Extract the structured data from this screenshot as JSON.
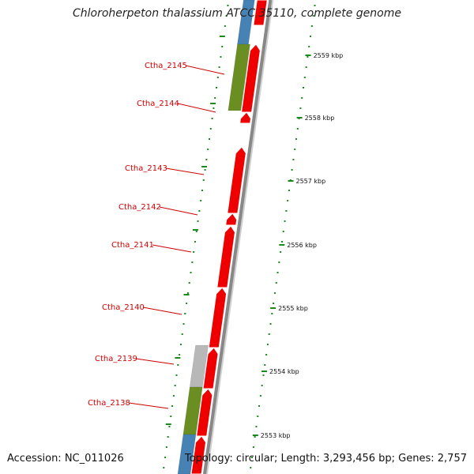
{
  "title": "Chloroherpeton thalassium ATCC 35110, complete genome",
  "accession": "Accession: NC_011026",
  "summary": "Topology: circular; Length: 3,293,456 bp; Genes: 2,757",
  "colors": {
    "cds": "#ee0000",
    "gene_label": "#cc0000",
    "cog_green": "#6b8e23",
    "cog_blue": "#4682b4",
    "cog_gray": "#b8b8b8",
    "backbone": "#888888",
    "ticks": "#1a8a1a"
  },
  "genes": [
    {
      "name": "Ctha_2145"
    },
    {
      "name": "Ctha_2144"
    },
    {
      "name": "Ctha_2143"
    },
    {
      "name": "Ctha_2142"
    },
    {
      "name": "Ctha_2141"
    },
    {
      "name": "Ctha_2140"
    },
    {
      "name": "Ctha_2139"
    },
    {
      "name": "Ctha_2138"
    }
  ],
  "kbp_labels": [
    "2559 kbp",
    "2558 kbp",
    "2557 kbp",
    "2556 kbp",
    "2555 kbp",
    "2554 kbp",
    "2553 kbp"
  ]
}
